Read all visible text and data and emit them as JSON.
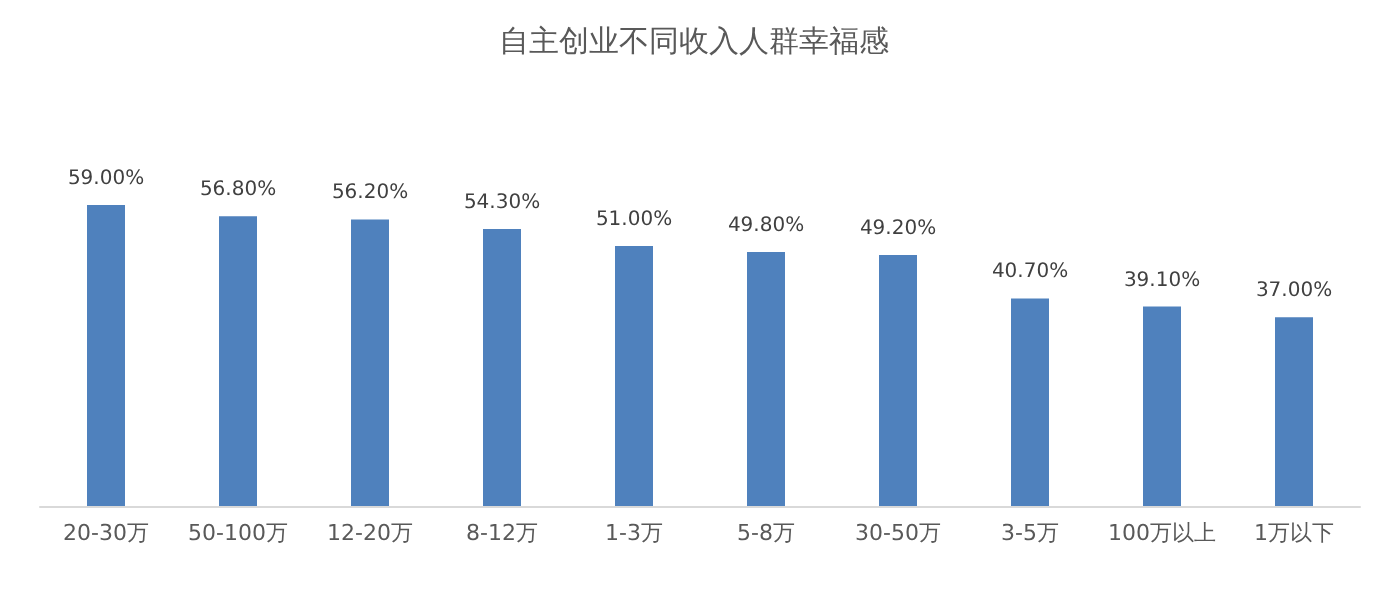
{
  "chart_data": {
    "type": "bar",
    "title": "自主创业不同收入人群幸福感",
    "categories": [
      "20-30万",
      "50-100万",
      "12-20万",
      "8-12万",
      "1-3万",
      "5-8万",
      "30-50万",
      "3-5万",
      "100万以上",
      "1万以下"
    ],
    "values": [
      59.0,
      56.8,
      56.2,
      54.3,
      51.0,
      49.8,
      49.2,
      40.7,
      39.1,
      37.0
    ],
    "value_labels": [
      "59.00%",
      "56.80%",
      "56.20%",
      "54.30%",
      "51.00%",
      "49.80%",
      "49.20%",
      "40.70%",
      "39.10%",
      "37.00%"
    ],
    "color": "#4f81bd"
  }
}
